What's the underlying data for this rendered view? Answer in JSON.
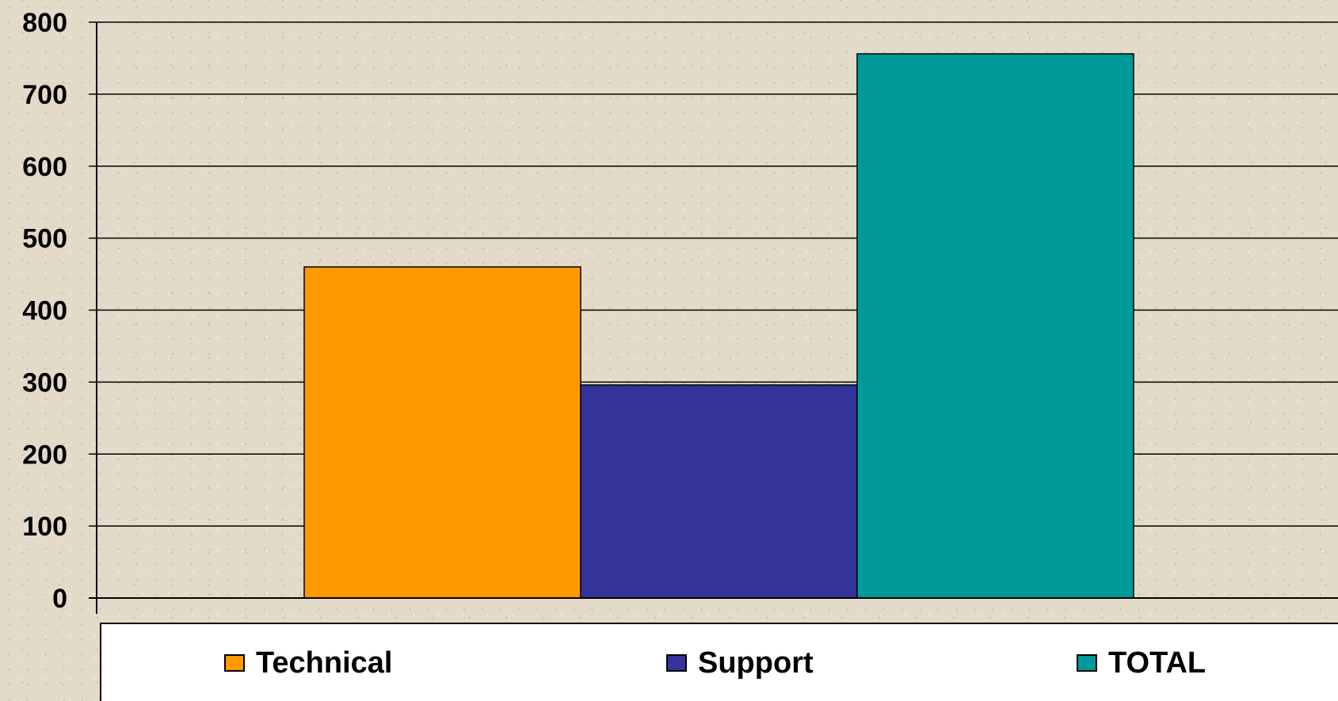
{
  "chart_data": {
    "type": "bar",
    "categories": [
      ""
    ],
    "series": [
      {
        "name": "Technical",
        "values": [
          460
        ],
        "color": "#ff9900"
      },
      {
        "name": "Support",
        "values": [
          296
        ],
        "color": "#333399"
      },
      {
        "name": "TOTAL",
        "values": [
          756
        ],
        "color": "#009999"
      }
    ],
    "title": "",
    "xlabel": "",
    "ylabel": "",
    "ylim": [
      0,
      800
    ],
    "yticks": [
      "0",
      "100",
      "200",
      "300",
      "400",
      "500",
      "600",
      "700",
      "800"
    ],
    "grid": true,
    "legend_position": "bottom"
  },
  "legend": {
    "items": [
      {
        "label": "Technical",
        "color": "#ff9900"
      },
      {
        "label": "Support",
        "color": "#333399"
      },
      {
        "label": "TOTAL",
        "color": "#009999"
      }
    ]
  }
}
